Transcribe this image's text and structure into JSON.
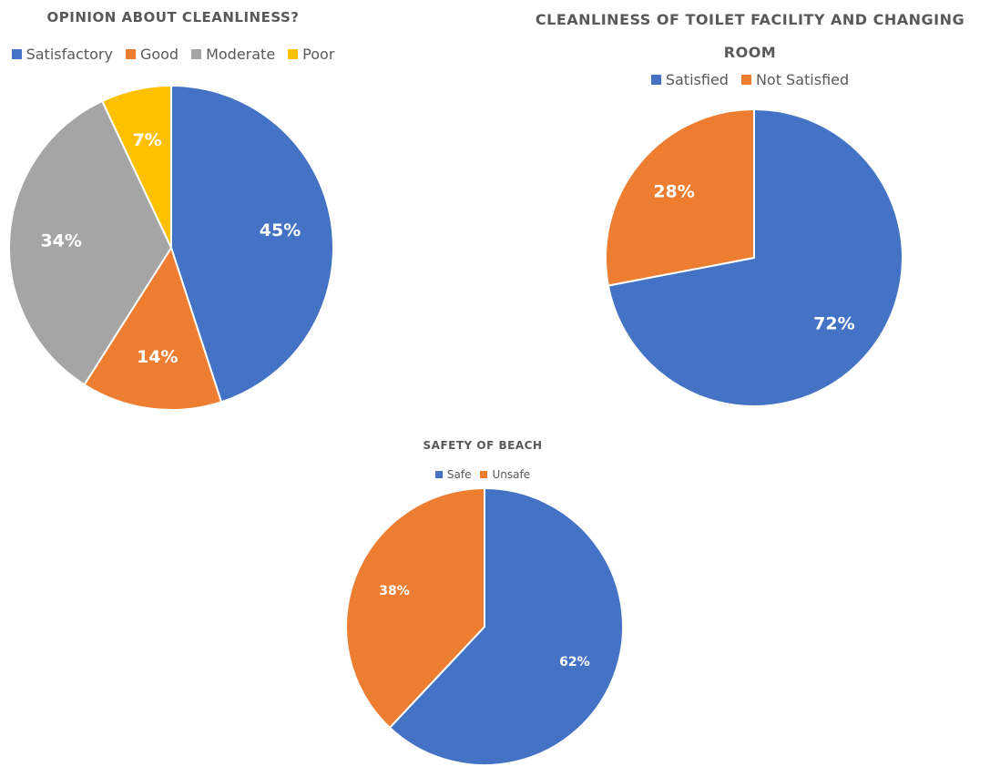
{
  "chart_data": [
    {
      "type": "pie",
      "title": "OPINION ABOUT CLEANLINESS?",
      "legend_position": "top",
      "categories": [
        "Satisfactory",
        "Good",
        "Moderate",
        "Poor"
      ],
      "values": [
        45,
        14,
        34,
        7
      ],
      "labels": [
        "45%",
        "14%",
        "34%",
        "7%"
      ],
      "colors": [
        "#4472C4",
        "#ED7D31",
        "#A5A5A5",
        "#FFC000"
      ]
    },
    {
      "type": "pie",
      "title": "CLEANLINESS OF TOILET FACILITY AND CHANGING ROOM",
      "legend_position": "top",
      "categories": [
        "Satisfied",
        "Not Satisfied"
      ],
      "values": [
        72,
        28
      ],
      "labels": [
        "72%",
        "28%"
      ],
      "colors": [
        "#4472C4",
        "#ED7D31"
      ]
    },
    {
      "type": "pie",
      "title": "SAFETY OF BEACH",
      "legend_position": "top",
      "categories": [
        "Safe",
        "Unsafe"
      ],
      "values": [
        62,
        38
      ],
      "labels": [
        "62%",
        "38%"
      ],
      "colors": [
        "#4472C4",
        "#ED7D31"
      ]
    }
  ]
}
